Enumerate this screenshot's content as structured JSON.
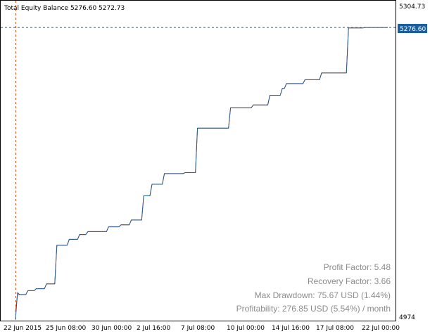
{
  "chart_data": {
    "type": "line",
    "title": "Total Equity Balance 5276.60 5272.73",
    "price_tag": "5276.60",
    "y_tick_labels": [
      "5304.73",
      "4974"
    ],
    "ylim": [
      4974,
      5304.73
    ],
    "x_tick_labels": [
      "22 Jun 2015",
      "25 Jun 08:00",
      "30 Jun 00:00",
      "2 Jul 16:00",
      "7 Jul 08:00",
      "10 Jul 00:00",
      "14 Jul 16:00",
      "17 Jul 08:00",
      "22 Jul 00:00"
    ],
    "grid": false,
    "series": [
      {
        "color": "#ff4000",
        "values": [
          4983,
          5001,
          5001,
          5001,
          5001,
          5001,
          5005,
          5005,
          5005,
          5005,
          5007,
          5007,
          5007,
          5007,
          5007,
          5012,
          5012,
          5012,
          5012,
          5012,
          5052,
          5052,
          5052,
          5052,
          5052,
          5052,
          5058,
          5058,
          5058,
          5058,
          5058,
          5063,
          5063,
          5063,
          5063,
          5066,
          5066,
          5066,
          5066,
          5066,
          5066,
          5066,
          5066,
          5066,
          5066,
          5071,
          5071,
          5071,
          5071,
          5071,
          5071,
          5073,
          5073,
          5073,
          5073,
          5073,
          5078,
          5078,
          5078,
          5078,
          5078,
          5078,
          5103,
          5103,
          5103,
          5103,
          5115,
          5115,
          5115,
          5115,
          5115,
          5115,
          5126,
          5126,
          5126,
          5126,
          5126,
          5126,
          5126,
          5126,
          5126,
          5126,
          5127,
          5127,
          5127,
          5127,
          5127,
          5127,
          5173,
          5173,
          5173,
          5173,
          5173,
          5173,
          5173,
          5173,
          5173,
          5173,
          5173,
          5173,
          5173,
          5173,
          5173,
          5173,
          5194,
          5194,
          5194,
          5194,
          5194,
          5194,
          5194,
          5194,
          5194,
          5194,
          5194,
          5197,
          5197,
          5197,
          5197,
          5197,
          5197,
          5197,
          5197,
          5207,
          5207,
          5207,
          5207,
          5207,
          5207,
          5214,
          5214,
          5219,
          5219,
          5219,
          5219,
          5219,
          5219,
          5219,
          5219,
          5219,
          5223,
          5223,
          5223,
          5223,
          5223,
          5223,
          5223,
          5223,
          5230,
          5230,
          5230,
          5230,
          5230,
          5230,
          5230,
          5230,
          5230,
          5230,
          5230,
          5230,
          5230,
          5276.6,
          5276.6,
          5276.6,
          5276.6,
          5276.6,
          5276.6,
          5276.6,
          5276.6,
          5277,
          5277,
          5277,
          5277,
          5277,
          5277,
          5277,
          5277,
          5277,
          5277,
          5277,
          5277
        ]
      },
      {
        "color": "#1a5f9e",
        "values": [
          4975,
          5003,
          5001,
          5001,
          5001,
          5001,
          5005,
          5005,
          5005,
          5005,
          5007,
          5007,
          5007,
          5007,
          5007,
          5012,
          5012,
          5012,
          5012,
          5012,
          5052,
          5052,
          5052,
          5052,
          5052,
          5052,
          5058,
          5058,
          5058,
          5058,
          5058,
          5063,
          5063,
          5063,
          5063,
          5066,
          5066,
          5066,
          5066,
          5066,
          5066,
          5066,
          5066,
          5066,
          5066,
          5071,
          5071,
          5071,
          5071,
          5071,
          5071,
          5073,
          5073,
          5073,
          5073,
          5073,
          5078,
          5078,
          5078,
          5078,
          5078,
          5078,
          5103,
          5103,
          5103,
          5103,
          5115,
          5115,
          5115,
          5115,
          5115,
          5115,
          5126,
          5126,
          5126,
          5126,
          5126,
          5126,
          5126,
          5126,
          5126,
          5126,
          5127,
          5127,
          5127,
          5127,
          5127,
          5127,
          5173,
          5173,
          5173,
          5173,
          5173,
          5173,
          5173,
          5173,
          5173,
          5173,
          5173,
          5173,
          5173,
          5173,
          5173,
          5173,
          5194,
          5194,
          5194,
          5194,
          5194,
          5194,
          5194,
          5194,
          5194,
          5194,
          5194,
          5197,
          5197,
          5197,
          5197,
          5197,
          5197,
          5197,
          5197,
          5207,
          5207,
          5207,
          5207,
          5207,
          5207,
          5214,
          5214,
          5219,
          5219,
          5219,
          5219,
          5219,
          5219,
          5219,
          5219,
          5219,
          5223,
          5223,
          5223,
          5223,
          5223,
          5223,
          5223,
          5223,
          5230,
          5230,
          5230,
          5230,
          5230,
          5230,
          5230,
          5230,
          5230,
          5230,
          5230,
          5230,
          5230,
          5276.6,
          5276.6,
          5276.6,
          5276.6,
          5276.6,
          5276.6,
          5276.6,
          5276.6,
          5277,
          5277,
          5277,
          5277,
          5277,
          5277,
          5277,
          5277,
          5277,
          5277,
          5277,
          5277
        ]
      }
    ],
    "stats": {
      "profit_factor": "Profit Factor: 5.48",
      "recovery_factor": "Recovery Factor: 3.66",
      "max_drawdown": "Max Drawdown: 75.67 USD (1.44%)",
      "profitability": "Profitability: 276.85 USD (5.54%) / month"
    }
  }
}
